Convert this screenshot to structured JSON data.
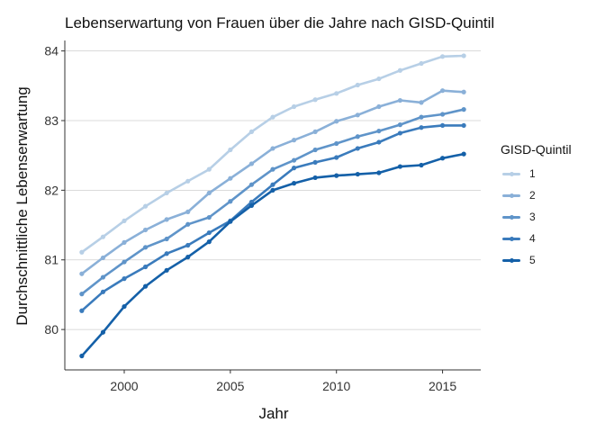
{
  "chart_data": {
    "type": "line",
    "title": "Lebenserwartung von Frauen über die Jahre nach GISD-Quintil",
    "xlabel": "Jahr",
    "ylabel": "Durchschnittliche Lebenserwartung",
    "xlim": [
      1997.2,
      2016.8
    ],
    "ylim": [
      79.42,
      84.15
    ],
    "x_ticks": [
      2000,
      2005,
      2010,
      2015
    ],
    "y_ticks": [
      80,
      81,
      82,
      83,
      84
    ],
    "grid": "horizontal",
    "legend": {
      "title": "GISD-Quintil",
      "position": "right"
    },
    "x": [
      1998,
      1999,
      2000,
      2001,
      2002,
      2003,
      2004,
      2005,
      2006,
      2007,
      2008,
      2009,
      2010,
      2011,
      2012,
      2013,
      2014,
      2015,
      2016
    ],
    "series": [
      {
        "name": "1",
        "color": "#b7cfe6",
        "values": [
          81.11,
          81.33,
          81.56,
          81.77,
          81.96,
          82.13,
          82.3,
          82.58,
          82.84,
          83.05,
          83.2,
          83.3,
          83.39,
          83.51,
          83.6,
          83.72,
          83.82,
          83.92,
          83.93
        ]
      },
      {
        "name": "2",
        "color": "#8ab0d8",
        "values": [
          80.8,
          81.03,
          81.25,
          81.43,
          81.58,
          81.69,
          81.96,
          82.17,
          82.38,
          82.6,
          82.72,
          82.84,
          82.99,
          83.08,
          83.2,
          83.29,
          83.26,
          83.43,
          83.41
        ]
      },
      {
        "name": "3",
        "color": "#5f94c9",
        "values": [
          80.51,
          80.75,
          80.97,
          81.18,
          81.3,
          81.51,
          81.61,
          81.84,
          82.08,
          82.3,
          82.43,
          82.58,
          82.67,
          82.77,
          82.85,
          82.94,
          83.05,
          83.09,
          83.16
        ]
      },
      {
        "name": "4",
        "color": "#3a7bbc",
        "values": [
          80.27,
          80.54,
          80.73,
          80.9,
          81.09,
          81.21,
          81.39,
          81.56,
          81.83,
          82.08,
          82.32,
          82.4,
          82.47,
          82.6,
          82.69,
          82.82,
          82.9,
          82.93,
          82.93
        ]
      },
      {
        "name": "5",
        "color": "#1460a8",
        "values": [
          79.62,
          79.96,
          80.33,
          80.62,
          80.85,
          81.04,
          81.26,
          81.55,
          81.78,
          82.0,
          82.1,
          82.18,
          82.21,
          82.23,
          82.25,
          82.34,
          82.36,
          82.46,
          82.52
        ]
      }
    ]
  }
}
